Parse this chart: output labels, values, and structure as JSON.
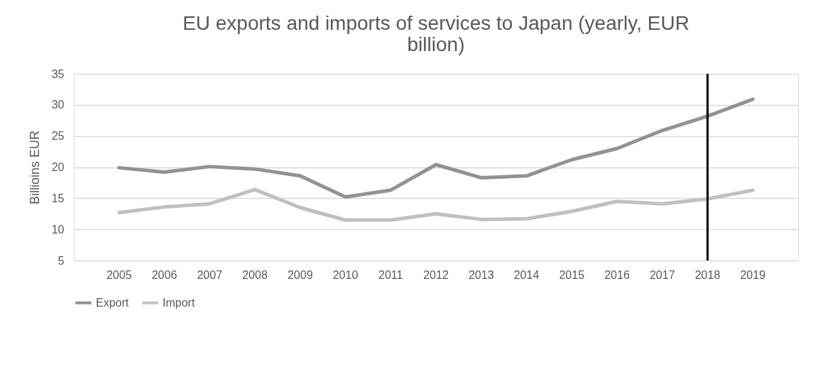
{
  "chart_data": {
    "type": "line",
    "title": [
      "EU exports and imports of services to Japan (yearly, EUR",
      "billion)"
    ],
    "ylabel": "Billioins EUR",
    "categories": [
      "2005",
      "2006",
      "2007",
      "2008",
      "2009",
      "2010",
      "2011",
      "2012",
      "2013",
      "2014",
      "2015",
      "2016",
      "2017",
      "2018",
      "2019"
    ],
    "series": [
      {
        "name": "Export",
        "color": "#929292",
        "values": [
          19.9,
          19.2,
          20.1,
          19.7,
          18.6,
          15.2,
          16.3,
          20.4,
          18.3,
          18.6,
          21.2,
          23.0,
          25.9,
          28.2,
          30.9
        ]
      },
      {
        "name": "Import",
        "color": "#c0c0c0",
        "values": [
          12.7,
          13.6,
          14.1,
          16.4,
          13.5,
          11.5,
          11.5,
          12.5,
          11.6,
          11.7,
          12.9,
          14.5,
          14.1,
          14.9,
          16.3
        ]
      }
    ],
    "ylim": [
      5,
      35
    ],
    "yticks": [
      5,
      10,
      15,
      20,
      25,
      30,
      35
    ],
    "grid": "y",
    "legend": "bottom",
    "marker": "none",
    "line_style": "solid",
    "ref_lines": [
      {
        "axis": "x",
        "value": "2018",
        "color": "#000000"
      }
    ]
  }
}
